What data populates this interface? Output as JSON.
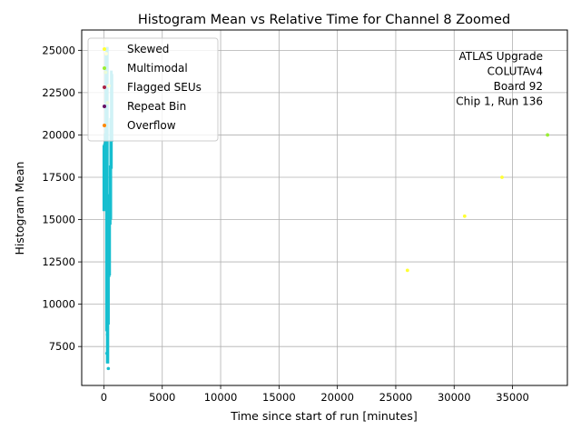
{
  "chart_data": {
    "type": "scatter",
    "title": "Histogram Mean vs Relative Time for Channel 8 Zoomed",
    "xlabel": "Time since start of run [minutes]",
    "ylabel": "Histogram Mean",
    "xlim": [
      -1900,
      39700
    ],
    "ylim": [
      5200,
      26200
    ],
    "x_ticks": [
      0,
      5000,
      10000,
      15000,
      20000,
      25000,
      30000,
      35000
    ],
    "x_tick_labels": [
      "0",
      "5000",
      "10000",
      "15000",
      "20000",
      "25000",
      "30000",
      "35000"
    ],
    "y_ticks": [
      7500,
      10000,
      12500,
      15000,
      17500,
      20000,
      22500,
      25000
    ],
    "y_tick_labels": [
      "7500",
      "10000",
      "12500",
      "15000",
      "17500",
      "20000",
      "22500",
      "25000"
    ],
    "grid": true,
    "legend_position": "top-left",
    "annotation": [
      "ATLAS Upgrade",
      "COLUTAv4",
      "Board 92",
      "Chip 1, Run 136"
    ],
    "main_series_color": "#17becf",
    "main_series": {
      "segments": [
        {
          "x": 0,
          "y_min": 15500,
          "y_max": 19400
        },
        {
          "x": 60,
          "y_min": 15600,
          "y_max": 19500
        },
        {
          "x": 120,
          "y_min": 15600,
          "y_max": 20100
        },
        {
          "x": 170,
          "y_min": 16000,
          "y_max": 24800
        },
        {
          "x": 230,
          "y_min": 8400,
          "y_max": 25000
        },
        {
          "x": 290,
          "y_min": 6500,
          "y_max": 25200
        },
        {
          "x": 340,
          "y_min": 6500,
          "y_max": 9000
        },
        {
          "x": 390,
          "y_min": 8800,
          "y_max": 12000
        },
        {
          "x": 440,
          "y_min": 11600,
          "y_max": 14800
        },
        {
          "x": 490,
          "y_min": 11700,
          "y_max": 16500
        },
        {
          "x": 540,
          "y_min": 14700,
          "y_max": 18200
        },
        {
          "x": 590,
          "y_min": 15000,
          "y_max": 21000
        },
        {
          "x": 640,
          "y_min": 18000,
          "y_max": 23800
        },
        {
          "x": 690,
          "y_min": 19600,
          "y_max": 23600
        }
      ],
      "points": [
        {
          "x": 380,
          "y": 6200
        },
        {
          "x": 250,
          "y": 7100
        },
        {
          "x": 300,
          "y": 8200
        }
      ]
    },
    "series": [
      {
        "name": "Skewed",
        "color": "#ffff33",
        "points": [
          {
            "x": 26000,
            "y": 12000
          },
          {
            "x": 30900,
            "y": 15200
          },
          {
            "x": 34100,
            "y": 17500
          },
          {
            "x": 200,
            "y": 24800
          },
          {
            "x": 420,
            "y": 22900
          }
        ]
      },
      {
        "name": "Multimodal",
        "color": "#99ee33",
        "points": [
          {
            "x": 38000,
            "y": 20000
          },
          {
            "x": 150,
            "y": 23700
          },
          {
            "x": 310,
            "y": 21900
          }
        ]
      },
      {
        "name": "Flagged SEUs",
        "color": "#aa2244",
        "points": []
      },
      {
        "name": "Repeat Bin",
        "color": "#661166",
        "points": []
      },
      {
        "name": "Overflow",
        "color": "#ff8800",
        "points": []
      }
    ]
  }
}
